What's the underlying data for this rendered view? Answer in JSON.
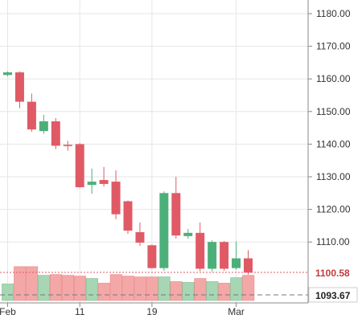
{
  "chart_data": {
    "type": "candlestick",
    "y_axis": {
      "ticks": [
        "1180.00",
        "1170.00",
        "1160.00",
        "1150.00",
        "1140.00",
        "1130.00",
        "1120.00",
        "1110.00"
      ],
      "ylim": [
        1090,
        1184
      ],
      "position": "right"
    },
    "x_axis": {
      "tick_labels": [
        "Feb",
        "11",
        "19",
        "Mar"
      ]
    },
    "grid": true,
    "last_price_label": "1100.58",
    "reference_price_label": "1093.67",
    "colors": {
      "up": "#4caf7a",
      "down": "#e05a66",
      "volume_up": "#a6d6b4",
      "volume_down": "#f4a7a7",
      "grid": "#e6e6e6",
      "axis_text": "#333333",
      "price_tag_text": "#c23b3b"
    },
    "candles": [
      {
        "open": 1161.2,
        "close": 1162.0,
        "high": 1162.3,
        "low": 1160.8,
        "volume": 0.42
      },
      {
        "open": 1162.0,
        "close": 1153.0,
        "high": 1162.3,
        "low": 1151.0,
        "volume": 0.86
      },
      {
        "open": 1153.0,
        "close": 1144.5,
        "high": 1155.5,
        "low": 1143.8,
        "volume": 0.86
      },
      {
        "open": 1144.0,
        "close": 1147.0,
        "high": 1149.0,
        "low": 1143.2,
        "volume": 0.64
      },
      {
        "open": 1147.0,
        "close": 1139.5,
        "high": 1148.0,
        "low": 1138.5,
        "volume": 0.66
      },
      {
        "open": 1139.8,
        "close": 1139.4,
        "high": 1141.0,
        "low": 1138.0,
        "volume": 0.64
      },
      {
        "open": 1140.0,
        "close": 1126.8,
        "high": 1140.3,
        "low": 1126.5,
        "volume": 0.62
      },
      {
        "open": 1127.5,
        "close": 1128.5,
        "high": 1132.5,
        "low": 1124.8,
        "volume": 0.56
      },
      {
        "open": 1129.0,
        "close": 1127.8,
        "high": 1133.0,
        "low": 1127.0,
        "volume": 0.44
      },
      {
        "open": 1128.5,
        "close": 1118.5,
        "high": 1132.0,
        "low": 1117.0,
        "volume": 0.66
      },
      {
        "open": 1122.5,
        "close": 1113.5,
        "high": 1122.7,
        "low": 1112.5,
        "volume": 0.62
      },
      {
        "open": 1113.0,
        "close": 1109.8,
        "high": 1116.0,
        "low": 1108.8,
        "volume": 0.6
      },
      {
        "open": 1109.0,
        "close": 1102.0,
        "high": 1109.2,
        "low": 1101.8,
        "volume": 0.6
      },
      {
        "open": 1102.0,
        "close": 1125.0,
        "high": 1125.5,
        "low": 1101.2,
        "volume": 0.6
      },
      {
        "open": 1125.0,
        "close": 1112.0,
        "high": 1130.0,
        "low": 1111.0,
        "volume": 0.48
      },
      {
        "open": 1111.8,
        "close": 1112.8,
        "high": 1114.0,
        "low": 1111.0,
        "volume": 0.46
      },
      {
        "open": 1112.8,
        "close": 1101.8,
        "high": 1116.0,
        "low": 1101.0,
        "volume": 0.56
      },
      {
        "open": 1101.8,
        "close": 1110.0,
        "high": 1110.5,
        "low": 1101.0,
        "volume": 0.48
      },
      {
        "open": 1110.0,
        "close": 1101.8,
        "high": 1110.3,
        "low": 1101.2,
        "volume": 0.44
      },
      {
        "open": 1102.0,
        "close": 1105.0,
        "high": 1110.2,
        "low": 1101.5,
        "volume": 0.58
      },
      {
        "open": 1105.0,
        "close": 1100.6,
        "high": 1107.5,
        "low": 1100.0,
        "volume": 0.64
      }
    ],
    "x_tick_candle_index": [
      0,
      6,
      12,
      19
    ]
  }
}
